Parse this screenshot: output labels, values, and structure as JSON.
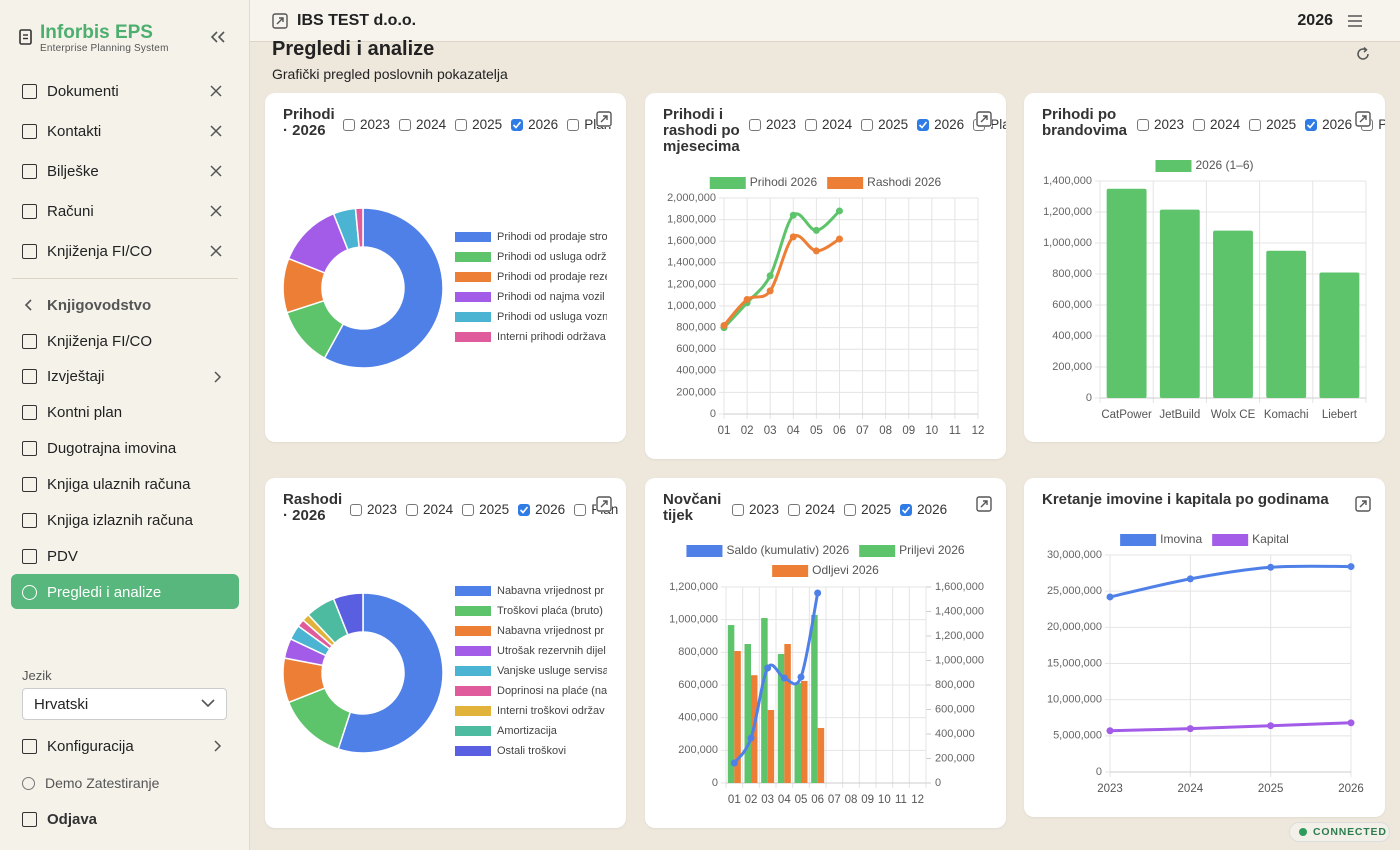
{
  "sidebar": {
    "brand": "Inforbis EPS",
    "tagline": "Enterprise Planning System",
    "open_tabs": [
      "Dokumenti",
      "Kontakti",
      "Bilješke",
      "Računi",
      "Knjiženja FI/CO"
    ],
    "section": "Knjigovodstvo",
    "menu": [
      "Knjiženja FI/CO",
      "Izvještaji",
      "Kontni plan",
      "Dugotrajna imovina",
      "Knjiga ulaznih računa",
      "Knjiga izlaznih računa",
      "PDV",
      "Pregledi i analize"
    ],
    "active": "Pregledi i analize",
    "language_label": "Jezik",
    "language": "Hrvatski",
    "config": "Konfiguracija",
    "user": "Demo Zatestiranje",
    "logout": "Odjava"
  },
  "header": {
    "company": "IBS TEST d.o.o.",
    "year": "2026"
  },
  "page": {
    "title": "Pregledi i analize",
    "subtitle": "Grafički pregled poslovnih pokazatelja"
  },
  "status": "CONNECTED",
  "chart_data": [
    {
      "type": "doughnut",
      "title": "Prihodi · 2026",
      "filters": [
        {
          "label": "2023",
          "checked": false
        },
        {
          "label": "2024",
          "checked": false
        },
        {
          "label": "2025",
          "checked": false
        },
        {
          "label": "2026",
          "checked": true
        },
        {
          "label": "Plan",
          "checked": false
        }
      ],
      "categories": [
        "Prihodi od prodaje stro",
        "Prihodi od usluga održ",
        "Prihodi od prodaje reze",
        "Prihodi od najma vozil",
        "Prihodi od usluga vozn",
        "Interni prihodi održava"
      ],
      "values": [
        58,
        12,
        11,
        13,
        4.5,
        1.5
      ],
      "colors": [
        "#4f80e8",
        "#5ec46c",
        "#ed7e35",
        "#a35ce8",
        "#4bb4d2",
        "#df5b9b"
      ]
    },
    {
      "type": "line",
      "title": "Prihodi i rashodi po mjesecima",
      "filters": [
        {
          "label": "2023",
          "checked": false
        },
        {
          "label": "2024",
          "checked": false
        },
        {
          "label": "2025",
          "checked": false
        },
        {
          "label": "2026",
          "checked": true
        },
        {
          "label": "Plan",
          "checked": false
        }
      ],
      "categories": [
        "01",
        "02",
        "03",
        "04",
        "05",
        "06",
        "07",
        "08",
        "09",
        "10",
        "11",
        "12"
      ],
      "series": [
        {
          "name": "Prihodi 2026",
          "color": "#5ec46c",
          "values": [
            800000,
            1030000,
            1280000,
            1840000,
            1700000,
            1880000,
            null,
            null,
            null,
            null,
            null,
            null
          ]
        },
        {
          "name": "Rashodi 2026",
          "color": "#ed7e35",
          "values": [
            820000,
            1060000,
            1140000,
            1640000,
            1510000,
            1620000,
            null,
            null,
            null,
            null,
            null,
            null
          ]
        }
      ],
      "ylim": [
        0,
        2000000
      ],
      "yticks": [
        0,
        {
          "value": 200000,
          "label": "200,000"
        },
        {
          "value": 400000,
          "label": "400,000"
        },
        {
          "value": 600000,
          "label": "600,000"
        },
        {
          "value": 800000,
          "label": "800,000"
        },
        {
          "value": 1000000,
          "label": "1,000,000"
        },
        {
          "value": 1200000,
          "label": "1,200,000"
        },
        {
          "value": 1400000,
          "label": "1,400,000"
        },
        {
          "value": 1600000,
          "label": "1,600,000"
        },
        {
          "value": 1800000,
          "label": "1,800,000"
        },
        {
          "value": 2000000,
          "label": "2,000,000"
        }
      ],
      "grid": true
    },
    {
      "type": "bar",
      "title": "Prihodi po brandovima",
      "filters": [
        {
          "label": "2023",
          "checked": false
        },
        {
          "label": "2024",
          "checked": false
        },
        {
          "label": "2025",
          "checked": false
        },
        {
          "label": "2026",
          "checked": true
        },
        {
          "label": "Pla",
          "checked": false
        }
      ],
      "categories": [
        "CatPower",
        "JetBuild",
        "Wolx CE",
        "Komachi",
        "Liebert"
      ],
      "series": [
        {
          "name": "2026 (1–6)",
          "color": "#5ec46c",
          "values": [
            1350000,
            1215000,
            1080000,
            950000,
            810000
          ]
        }
      ],
      "ylim": [
        0,
        1400000
      ],
      "yticks": [
        0,
        {
          "value": 200000,
          "label": "200,000"
        },
        {
          "value": 400000,
          "label": "400,000"
        },
        {
          "value": 600000,
          "label": "600,000"
        },
        {
          "value": 800000,
          "label": "800,000"
        },
        {
          "value": 1000000,
          "label": "1,000,000"
        },
        {
          "value": 1200000,
          "label": "1,200,000"
        },
        {
          "value": 1400000,
          "label": "1,400,000"
        }
      ],
      "grid": true
    },
    {
      "type": "doughnut",
      "title": "Rashodi · 2026",
      "filters": [
        {
          "label": "2023",
          "checked": false
        },
        {
          "label": "2024",
          "checked": false
        },
        {
          "label": "2025",
          "checked": false
        },
        {
          "label": "2026",
          "checked": true
        },
        {
          "label": "Plan",
          "checked": false
        }
      ],
      "categories": [
        "Nabavna vrijednost pr",
        "Troškovi plaća (bruto)",
        "Nabavna vrijednost pr",
        "Utrošak rezervnih dijel",
        "Vanjske usluge servisa",
        "Doprinosi na plaće (na",
        "Interni troškovi održav",
        "Amortizacija",
        "Ostali troškovi"
      ],
      "values": [
        55,
        14,
        9,
        4,
        3,
        1.5,
        1.5,
        6,
        6
      ],
      "colors": [
        "#4f80e8",
        "#5ec46c",
        "#ed7e35",
        "#a35ce8",
        "#4bb4d2",
        "#df5b9b",
        "#e2b33a",
        "#4dbba0",
        "#5a5ee0"
      ]
    },
    {
      "type": "combo",
      "title": "Novčani tijek",
      "filters": [
        {
          "label": "2023",
          "checked": false
        },
        {
          "label": "2024",
          "checked": false
        },
        {
          "label": "2025",
          "checked": false
        },
        {
          "label": "2026",
          "checked": true
        }
      ],
      "categories": [
        "01",
        "02",
        "03",
        "04",
        "05",
        "06",
        "07",
        "08",
        "09",
        "10",
        "11",
        "12"
      ],
      "series": [
        {
          "name": "Saldo (kumulativ) 2026",
          "type": "line",
          "axis": "y2",
          "color": "#4f80e8",
          "values": [
            163000,
            367000,
            939000,
            857000,
            865000,
            1551000,
            null,
            null,
            null,
            null,
            null,
            null
          ]
        },
        {
          "name": "Priljevi 2026",
          "type": "bar",
          "color": "#5ec46c",
          "values": [
            967000,
            851000,
            1010000,
            790000,
            612000,
            1029000,
            null,
            null,
            null,
            null,
            null,
            null
          ]
        },
        {
          "name": "Odljevi 2026",
          "type": "bar",
          "color": "#ed7e35",
          "values": [
            808000,
            660000,
            447000,
            851000,
            625000,
            337000,
            null,
            null,
            null,
            null,
            null,
            null
          ]
        }
      ],
      "ylim": [
        0,
        1200000
      ],
      "yticks": [
        0,
        {
          "value": 200000,
          "label": "200,000"
        },
        {
          "value": 400000,
          "label": "400,000"
        },
        {
          "value": 600000,
          "label": "600,000"
        },
        {
          "value": 800000,
          "label": "800,000"
        },
        {
          "value": 1000000,
          "label": "1,000,000"
        },
        {
          "value": 1200000,
          "label": "1,200,000"
        }
      ],
      "y2lim": [
        0,
        1600000
      ],
      "y2ticks": [
        0,
        {
          "value": 200000,
          "label": "200,000"
        },
        {
          "value": 400000,
          "label": "400,000"
        },
        {
          "value": 600000,
          "label": "600,000"
        },
        {
          "value": 800000,
          "label": "800,000"
        },
        {
          "value": 1000000,
          "label": "1,000,000"
        },
        {
          "value": 1200000,
          "label": "1,200,000"
        },
        {
          "value": 1400000,
          "label": "1,400,000"
        },
        {
          "value": 1600000,
          "label": "1,600,000"
        }
      ],
      "grid": true
    },
    {
      "type": "line",
      "title": "Kretanje imovine i kapitala po godinama",
      "categories": [
        "2023",
        "2024",
        "2025",
        "2026"
      ],
      "series": [
        {
          "name": "Imovina",
          "color": "#4f80e8",
          "values": [
            24200000,
            26700000,
            28300000,
            28400000
          ]
        },
        {
          "name": "Kapital",
          "color": "#a35ce8",
          "values": [
            5700000,
            6000000,
            6400000,
            6800000
          ]
        }
      ],
      "ylim": [
        0,
        30000000
      ],
      "yticks": [
        0,
        {
          "value": 5000000,
          "label": "5,000,000"
        },
        {
          "value": 10000000,
          "label": "10,000,000"
        },
        {
          "value": 15000000,
          "label": "15,000,000"
        },
        {
          "value": 20000000,
          "label": "20,000,000"
        },
        {
          "value": 25000000,
          "label": "25,000,000"
        },
        {
          "value": 30000000,
          "label": "30,000,000"
        }
      ],
      "grid": true
    }
  ]
}
